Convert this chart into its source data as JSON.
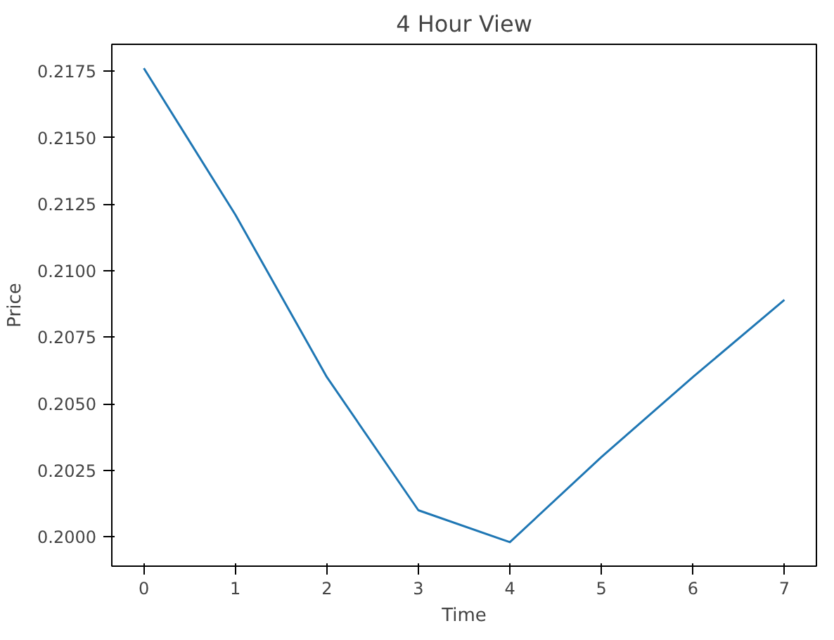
{
  "chart_data": {
    "type": "line",
    "title": "4 Hour View",
    "xlabel": "Time",
    "ylabel": "Price",
    "x": [
      0,
      1,
      2,
      3,
      4,
      5,
      6,
      7
    ],
    "series": [
      {
        "color": "#1f77b4",
        "values": [
          0.2176,
          0.2121,
          0.206,
          0.201,
          0.1998,
          0.203,
          0.206,
          0.2089
        ]
      }
    ],
    "xlim": [
      -0.35,
      7.35
    ],
    "ylim": [
      0.1989,
      0.2185
    ],
    "xticks": [
      0,
      1,
      2,
      3,
      4,
      5,
      6,
      7
    ],
    "yticks": [
      {
        "value": 0.2,
        "label": "0.2000"
      },
      {
        "value": 0.2025,
        "label": "0.2025"
      },
      {
        "value": 0.205,
        "label": "0.2050"
      },
      {
        "value": 0.2075,
        "label": "0.2075"
      },
      {
        "value": 0.21,
        "label": "0.2100"
      },
      {
        "value": 0.2125,
        "label": "0.2125"
      },
      {
        "value": 0.215,
        "label": "0.2150"
      },
      {
        "value": 0.2175,
        "label": "0.2175"
      }
    ],
    "grid": false
  }
}
